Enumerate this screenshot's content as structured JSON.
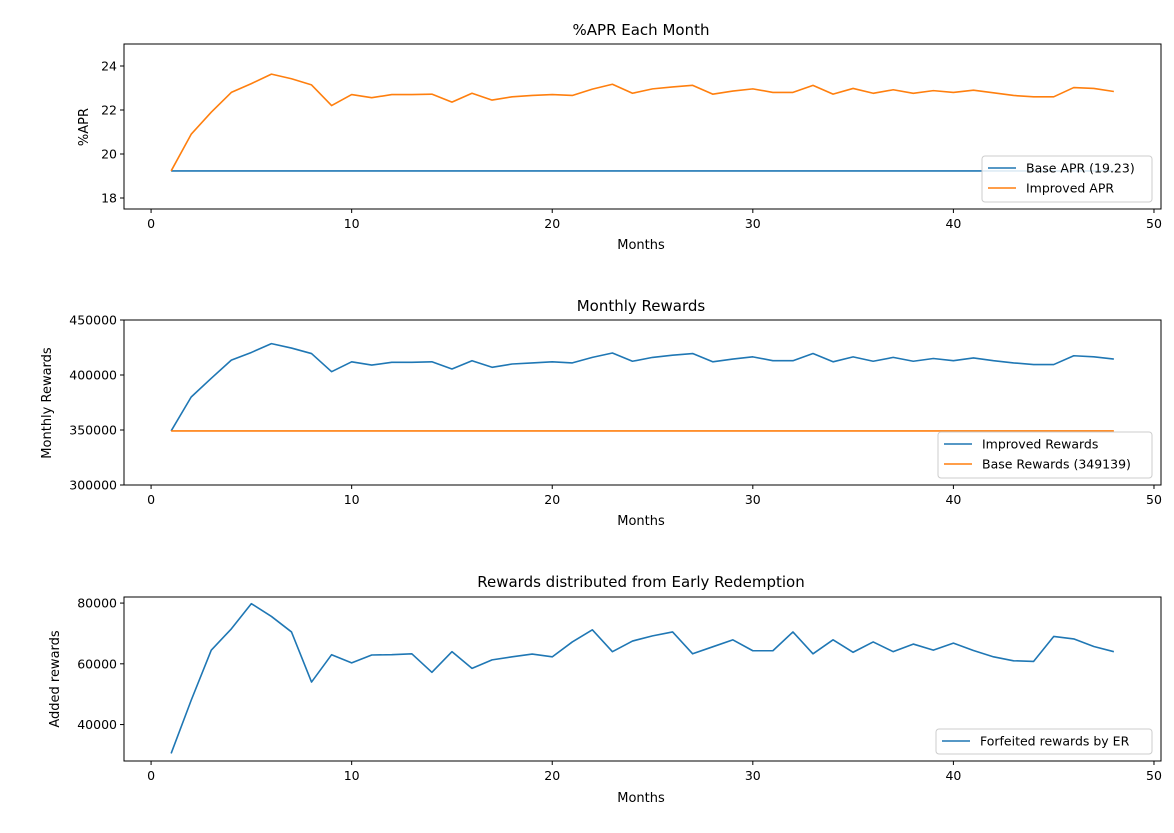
{
  "chart_data": [
    {
      "type": "line",
      "title": "%APR Each Month",
      "xlabel": "Months",
      "ylabel": "%APR",
      "xlim": [
        -1.35,
        50.35
      ],
      "ylim": [
        17.5,
        25.0
      ],
      "xticks": [
        0,
        10,
        20,
        30,
        40,
        50
      ],
      "yticks": [
        18,
        20,
        22,
        24
      ],
      "grid": false,
      "legend_position": "lower-right",
      "x": [
        1,
        2,
        3,
        4,
        5,
        6,
        7,
        8,
        9,
        10,
        11,
        12,
        13,
        14,
        15,
        16,
        17,
        18,
        19,
        20,
        21,
        22,
        23,
        24,
        25,
        26,
        27,
        28,
        29,
        30,
        31,
        32,
        33,
        34,
        35,
        36,
        37,
        38,
        39,
        40,
        41,
        42,
        43,
        44,
        45,
        46,
        47,
        48
      ],
      "series": [
        {
          "name": "Base APR (19.23)",
          "color": "#1f77b4",
          "values": [
            19.23,
            19.23,
            19.23,
            19.23,
            19.23,
            19.23,
            19.23,
            19.23,
            19.23,
            19.23,
            19.23,
            19.23,
            19.23,
            19.23,
            19.23,
            19.23,
            19.23,
            19.23,
            19.23,
            19.23,
            19.23,
            19.23,
            19.23,
            19.23,
            19.23,
            19.23,
            19.23,
            19.23,
            19.23,
            19.23,
            19.23,
            19.23,
            19.23,
            19.23,
            19.23,
            19.23,
            19.23,
            19.23,
            19.23,
            19.23,
            19.23,
            19.23,
            19.23,
            19.23,
            19.23,
            19.23,
            19.23,
            19.23
          ]
        },
        {
          "name": "Improved APR",
          "color": "#ff7f0e",
          "values": [
            19.23,
            20.9,
            21.9,
            22.8,
            23.2,
            23.63,
            23.42,
            23.14,
            22.2,
            22.7,
            22.56,
            22.7,
            22.7,
            22.72,
            22.36,
            22.76,
            22.45,
            22.6,
            22.66,
            22.7,
            22.66,
            22.95,
            23.17,
            22.76,
            22.96,
            23.05,
            23.12,
            22.72,
            22.86,
            22.96,
            22.8,
            22.8,
            23.12,
            22.72,
            22.98,
            22.76,
            22.92,
            22.76,
            22.88,
            22.8,
            22.9,
            22.78,
            22.66,
            22.6,
            22.6,
            23.02,
            22.98,
            22.84
          ]
        }
      ]
    },
    {
      "type": "line",
      "title": "Monthly Rewards",
      "xlabel": "Months",
      "ylabel": "Monthly Rewards",
      "xlim": [
        -1.35,
        50.35
      ],
      "ylim": [
        300000,
        450000
      ],
      "xticks": [
        0,
        10,
        20,
        30,
        40,
        50
      ],
      "yticks": [
        300000,
        350000,
        400000,
        450000
      ],
      "grid": false,
      "legend_position": "lower-right",
      "x": [
        1,
        2,
        3,
        4,
        5,
        6,
        7,
        8,
        9,
        10,
        11,
        12,
        13,
        14,
        15,
        16,
        17,
        18,
        19,
        20,
        21,
        22,
        23,
        24,
        25,
        26,
        27,
        28,
        29,
        30,
        31,
        32,
        33,
        34,
        35,
        36,
        37,
        38,
        39,
        40,
        41,
        42,
        43,
        44,
        45,
        46,
        47,
        48
      ],
      "series": [
        {
          "name": "Improved Rewards",
          "color": "#1f77b4",
          "values": [
            349139,
            380000,
            397000,
            413500,
            420500,
            428500,
            424500,
            419500,
            403000,
            412000,
            409000,
            411500,
            411500,
            412000,
            405500,
            413000,
            407000,
            410000,
            411000,
            412000,
            411000,
            416000,
            420000,
            412500,
            416000,
            418000,
            419500,
            412000,
            414500,
            416500,
            413000,
            413000,
            419500,
            412000,
            416500,
            412500,
            416000,
            412500,
            415000,
            413000,
            415500,
            413000,
            411000,
            409500,
            409500,
            417500,
            416500,
            414500
          ]
        },
        {
          "name": "Base Rewards (349139)",
          "color": "#ff7f0e",
          "values": [
            349139,
            349139,
            349139,
            349139,
            349139,
            349139,
            349139,
            349139,
            349139,
            349139,
            349139,
            349139,
            349139,
            349139,
            349139,
            349139,
            349139,
            349139,
            349139,
            349139,
            349139,
            349139,
            349139,
            349139,
            349139,
            349139,
            349139,
            349139,
            349139,
            349139,
            349139,
            349139,
            349139,
            349139,
            349139,
            349139,
            349139,
            349139,
            349139,
            349139,
            349139,
            349139,
            349139,
            349139,
            349139,
            349139,
            349139,
            349139
          ]
        }
      ]
    },
    {
      "type": "line",
      "title": "Rewards distributed from Early Redemption",
      "xlabel": "Months",
      "ylabel": "Added rewards",
      "xlim": [
        -1.35,
        50.35
      ],
      "ylim": [
        28000,
        82000
      ],
      "xticks": [
        0,
        10,
        20,
        30,
        40,
        50
      ],
      "yticks": [
        40000,
        60000,
        80000
      ],
      "grid": false,
      "legend_position": "lower-right",
      "x": [
        1,
        2,
        3,
        4,
        5,
        6,
        7,
        8,
        9,
        10,
        11,
        12,
        13,
        14,
        15,
        16,
        17,
        18,
        19,
        20,
        21,
        22,
        23,
        24,
        25,
        26,
        27,
        28,
        29,
        30,
        31,
        32,
        33,
        34,
        35,
        36,
        37,
        38,
        39,
        40,
        41,
        42,
        43,
        44,
        45,
        46,
        47,
        48
      ],
      "series": [
        {
          "name": "Forfeited rewards by ER",
          "color": "#1f77b4",
          "values": [
            30500,
            48000,
            64500,
            71500,
            79800,
            75600,
            70500,
            54000,
            63000,
            60300,
            62900,
            63000,
            63300,
            57200,
            64000,
            58500,
            61300,
            62300,
            63200,
            62300,
            67200,
            71200,
            64000,
            67500,
            69200,
            70500,
            63300,
            65600,
            67900,
            64300,
            64300,
            70500,
            63300,
            67900,
            63800,
            67200,
            64000,
            66500,
            64500,
            66800,
            64400,
            62300,
            61000,
            60800,
            69000,
            68200,
            65700,
            64000
          ]
        }
      ]
    }
  ]
}
